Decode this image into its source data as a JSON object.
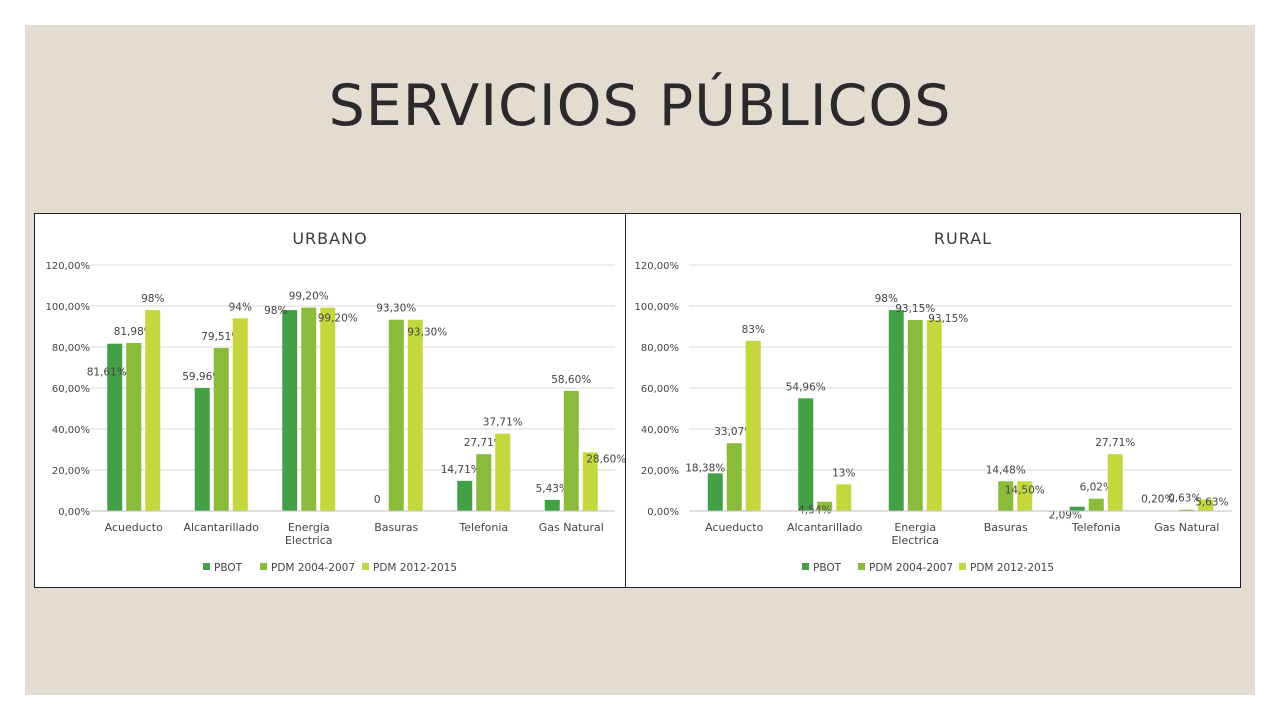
{
  "slide": {
    "title": "SERVICIOS PÚBLICOS",
    "background_color": "#e3ddd1"
  },
  "series_colors": [
    "#43a047",
    "#8bbb3a",
    "#c4d83d"
  ],
  "chart_data": [
    {
      "type": "bar",
      "title": "URBANO",
      "categories": [
        "Acueducto",
        "Alcantarillado",
        "Energia Electrica",
        "Basuras",
        "Telefonia",
        "Gas Natural"
      ],
      "category_lines": [
        [
          "Acueducto"
        ],
        [
          "Alcantarillado"
        ],
        [
          "Energia",
          "Electrica"
        ],
        [
          "Basuras"
        ],
        [
          "Telefonia"
        ],
        [
          "Gas Natural"
        ]
      ],
      "y_ticks": [
        "0,00%",
        "20,00%",
        "40,00%",
        "60,00%",
        "80,00%",
        "100,00%",
        "120,00%"
      ],
      "ylim": [
        0,
        120
      ],
      "grid": true,
      "legend_position": "bottom",
      "series": [
        {
          "name": "PBOT",
          "values": [
            81.61,
            59.96,
            98,
            0,
            14.71,
            5.43
          ],
          "labels": [
            "81,61%",
            "59,96%",
            "98%",
            "0",
            "14,71%",
            "5,43%"
          ]
        },
        {
          "name": "PDM 2004-2007",
          "values": [
            81.98,
            79.51,
            99.2,
            93.3,
            27.71,
            58.6
          ],
          "labels": [
            "81,98%",
            "79,51%",
            "99,20%",
            "93,30%",
            "27,71%",
            "58,60%"
          ]
        },
        {
          "name": "PDM 2012-2015",
          "values": [
            98,
            94,
            99.2,
            93.3,
            37.71,
            28.6
          ],
          "labels": [
            "98%",
            "94%",
            "99,20%",
            "93,30%",
            "37,71%",
            "28,60%"
          ]
        }
      ]
    },
    {
      "type": "bar",
      "title": "RURAL",
      "categories": [
        "Acueducto",
        "Alcantarillado",
        "Energia Electrica",
        "Basuras",
        "Telefonia",
        "Gas Natural"
      ],
      "category_lines": [
        [
          "Acueducto"
        ],
        [
          "Alcantarillado"
        ],
        [
          "Energia",
          "Electrica"
        ],
        [
          "Basuras"
        ],
        [
          "Telefonia"
        ],
        [
          "Gas Natural"
        ]
      ],
      "y_ticks": [
        "0,00%",
        "20,00%",
        "40,00%",
        "60,00%",
        "80,00%",
        "100,00%",
        "120,00%"
      ],
      "ylim": [
        0,
        120
      ],
      "grid": true,
      "legend_position": "bottom",
      "series": [
        {
          "name": "PBOT",
          "values": [
            18.38,
            54.96,
            98,
            0,
            2.09,
            0.2
          ],
          "labels": [
            "18,38%",
            "54,96%",
            "98%",
            "",
            "2,09%",
            "0,20%"
          ]
        },
        {
          "name": "PDM 2004-2007",
          "values": [
            33.07,
            4.54,
            93.15,
            14.48,
            6.02,
            0.63
          ],
          "labels": [
            "33,07%",
            "4,54%",
            "93,15%",
            "14,48%",
            "6,02%",
            "0,63%"
          ]
        },
        {
          "name": "PDM 2012-2015",
          "values": [
            83,
            13,
            93.15,
            14.5,
            27.71,
            5.63
          ],
          "labels": [
            "83%",
            "13%",
            "93,15%",
            "14,50%",
            "27,71%",
            "5,63%"
          ]
        }
      ]
    }
  ]
}
